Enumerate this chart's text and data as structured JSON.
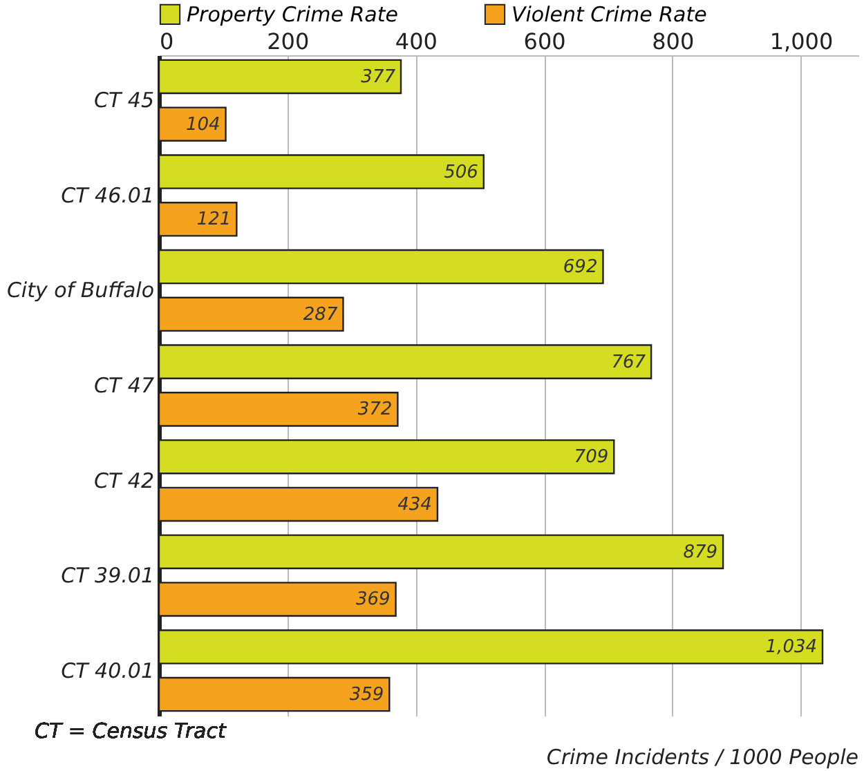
{
  "chart_data": {
    "type": "bar",
    "orientation": "horizontal",
    "categories": [
      "CT 45",
      "CT 46.01",
      "City of Buffalo",
      "CT 47",
      "CT 42",
      "CT 39.01",
      "CT 40.01"
    ],
    "series": [
      {
        "name": "Property Crime Rate",
        "color": "#d4dd22",
        "values": [
          377,
          506,
          692,
          767,
          709,
          879,
          1034
        ],
        "value_labels": [
          "377",
          "506",
          "692",
          "767",
          "709",
          "879",
          "1,034"
        ]
      },
      {
        "name": "Violent Crime Rate",
        "color": "#f5a31e",
        "values": [
          104,
          121,
          287,
          372,
          434,
          369,
          359
        ],
        "value_labels": [
          "104",
          "121",
          "287",
          "372",
          "434",
          "369",
          "359"
        ]
      }
    ],
    "xlim": [
      0,
      1090
    ],
    "xticks": [
      0,
      200,
      400,
      600,
      800,
      {
        "value": 1000,
        "label": "1,000"
      }
    ],
    "xlabel": "Crime Incidents / 1000 People",
    "annotations": [
      "CT = Census Tract"
    ],
    "grid": "x",
    "legend": "top"
  }
}
